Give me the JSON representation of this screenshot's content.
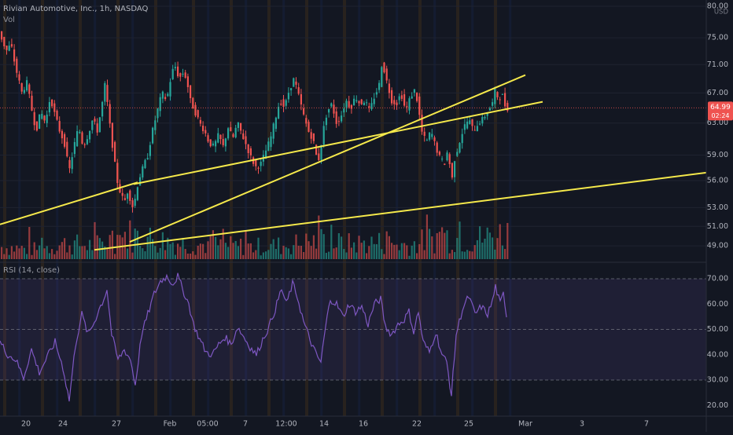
{
  "legend": {
    "title": "Rivian Automotive, Inc., 1h, NASDAQ",
    "volume": "Vol",
    "rsi": "RSI (14, close)"
  },
  "price_axis": {
    "currency": "USD",
    "ticks": [
      "80.00",
      "75.00",
      "71.00",
      "67.00",
      "63.00",
      "59.00",
      "56.00",
      "53.00",
      "51.00",
      "49.00"
    ],
    "last_price": "64.99",
    "countdown": "02:24"
  },
  "rsi_axis": {
    "ticks": [
      "70.00",
      "60.00",
      "50.00",
      "40.00",
      "30.00",
      "20.00"
    ]
  },
  "time_axis": {
    "ticks": [
      "20",
      "24",
      "27",
      "Feb",
      "05:00",
      "7",
      "12:00",
      "14",
      "16",
      "22",
      "25",
      "Mar",
      "3",
      "7"
    ]
  },
  "colors": {
    "background": "#131722",
    "up": "#26a69a",
    "down": "#ef5350",
    "trendline": "#f5e94b",
    "rsi_line": "#7e57c2",
    "session_band": "#ff9800",
    "premarket_band": "#2962ff"
  },
  "chart_data": {
    "type": "candlestick",
    "symbol": "RIVN",
    "interval": "1h",
    "y_scale": "log",
    "price_range": [
      48.0,
      80.0
    ],
    "price_path": [
      [
        0,
        76.5
      ],
      [
        4,
        75.0
      ],
      [
        10,
        73.0
      ],
      [
        16,
        74.0
      ],
      [
        22,
        70.5
      ],
      [
        30,
        67.0
      ],
      [
        36,
        68.5
      ],
      [
        42,
        65.0
      ],
      [
        48,
        62.0
      ],
      [
        54,
        64.5
      ],
      [
        60,
        63.0
      ],
      [
        66,
        66.5
      ],
      [
        72,
        64.0
      ],
      [
        78,
        62.0
      ],
      [
        84,
        60.5
      ],
      [
        90,
        57.0
      ],
      [
        96,
        60.0
      ],
      [
        102,
        62.5
      ],
      [
        108,
        60.0
      ],
      [
        114,
        61.5
      ],
      [
        120,
        63.5
      ],
      [
        126,
        62.0
      ],
      [
        132,
        65.5
      ],
      [
        136,
        68.5
      ],
      [
        140,
        64.0
      ],
      [
        144,
        61.0
      ],
      [
        148,
        58.0
      ],
      [
        152,
        55.5
      ],
      [
        156,
        54.5
      ],
      [
        160,
        53.5
      ],
      [
        165,
        55.0
      ],
      [
        170,
        53.0
      ],
      [
        174,
        54.0
      ],
      [
        178,
        56.0
      ],
      [
        184,
        57.5
      ],
      [
        190,
        59.0
      ],
      [
        196,
        62.0
      ],
      [
        202,
        64.5
      ],
      [
        208,
        67.0
      ],
      [
        214,
        66.0
      ],
      [
        220,
        69.5
      ],
      [
        224,
        71.0
      ],
      [
        230,
        69.0
      ],
      [
        236,
        70.0
      ],
      [
        240,
        68.5
      ],
      [
        244,
        66.0
      ],
      [
        250,
        64.5
      ],
      [
        256,
        63.0
      ],
      [
        262,
        62.0
      ],
      [
        268,
        60.5
      ],
      [
        274,
        60.0
      ],
      [
        280,
        61.5
      ],
      [
        286,
        60.0
      ],
      [
        292,
        62.5
      ],
      [
        298,
        61.0
      ],
      [
        304,
        63.0
      ],
      [
        310,
        61.5
      ],
      [
        316,
        60.0
      ],
      [
        322,
        58.5
      ],
      [
        328,
        57.5
      ],
      [
        334,
        58.0
      ],
      [
        340,
        59.5
      ],
      [
        346,
        61.0
      ],
      [
        352,
        63.5
      ],
      [
        358,
        66.0
      ],
      [
        364,
        65.0
      ],
      [
        370,
        67.5
      ],
      [
        376,
        69.0
      ],
      [
        382,
        66.5
      ],
      [
        388,
        64.0
      ],
      [
        394,
        62.0
      ],
      [
        400,
        61.0
      ],
      [
        404,
        59.0
      ],
      [
        408,
        58.5
      ],
      [
        412,
        61.5
      ],
      [
        418,
        64.5
      ],
      [
        424,
        65.5
      ],
      [
        430,
        63.0
      ],
      [
        436,
        64.0
      ],
      [
        442,
        66.0
      ],
      [
        448,
        65.0
      ],
      [
        454,
        66.5
      ],
      [
        460,
        65.5
      ],
      [
        466,
        66.0
      ],
      [
        472,
        64.5
      ],
      [
        478,
        66.5
      ],
      [
        484,
        68.0
      ],
      [
        488,
        71.5
      ],
      [
        494,
        68.5
      ],
      [
        500,
        66.0
      ],
      [
        506,
        65.5
      ],
      [
        512,
        67.0
      ],
      [
        518,
        64.5
      ],
      [
        524,
        66.5
      ],
      [
        530,
        67.5
      ],
      [
        534,
        65.0
      ],
      [
        538,
        62.0
      ],
      [
        544,
        60.5
      ],
      [
        550,
        62.0
      ],
      [
        556,
        60.0
      ],
      [
        562,
        58.5
      ],
      [
        568,
        58.0
      ],
      [
        572,
        60.0
      ],
      [
        576,
        55.5
      ],
      [
        580,
        58.5
      ],
      [
        586,
        60.5
      ],
      [
        592,
        62.5
      ],
      [
        598,
        63.5
      ],
      [
        604,
        62.0
      ],
      [
        610,
        63.0
      ],
      [
        616,
        63.5
      ],
      [
        622,
        64.5
      ],
      [
        628,
        65.5
      ],
      [
        632,
        67.5
      ],
      [
        636,
        66.0
      ],
      [
        640,
        67.0
      ],
      [
        645,
        65.0
      ]
    ],
    "volume_profile": [
      [
        0,
        0.45
      ],
      [
        40,
        0.35
      ],
      [
        80,
        0.55
      ],
      [
        120,
        0.5
      ],
      [
        160,
        0.9
      ],
      [
        200,
        0.7
      ],
      [
        240,
        0.55
      ],
      [
        280,
        0.5
      ],
      [
        320,
        0.45
      ],
      [
        360,
        0.5
      ],
      [
        400,
        0.65
      ],
      [
        440,
        0.55
      ],
      [
        480,
        0.6
      ],
      [
        520,
        0.5
      ],
      [
        560,
        0.85
      ],
      [
        600,
        0.7
      ],
      [
        645,
        0.95
      ]
    ],
    "rsi_path": [
      [
        0,
        45
      ],
      [
        10,
        40
      ],
      [
        20,
        38
      ],
      [
        30,
        31
      ],
      [
        40,
        42
      ],
      [
        50,
        33
      ],
      [
        60,
        39
      ],
      [
        70,
        45
      ],
      [
        80,
        35
      ],
      [
        88,
        22
      ],
      [
        96,
        44
      ],
      [
        104,
        56
      ],
      [
        112,
        48
      ],
      [
        120,
        53
      ],
      [
        126,
        58
      ],
      [
        132,
        62
      ],
      [
        136,
        66
      ],
      [
        142,
        48
      ],
      [
        150,
        38
      ],
      [
        158,
        42
      ],
      [
        166,
        38
      ],
      [
        172,
        28
      ],
      [
        180,
        48
      ],
      [
        188,
        56
      ],
      [
        196,
        64
      ],
      [
        204,
        69
      ],
      [
        212,
        71
      ],
      [
        220,
        68
      ],
      [
        226,
        71
      ],
      [
        232,
        66
      ],
      [
        240,
        60
      ],
      [
        246,
        52
      ],
      [
        254,
        46
      ],
      [
        262,
        41
      ],
      [
        270,
        40
      ],
      [
        278,
        44
      ],
      [
        286,
        47
      ],
      [
        294,
        44
      ],
      [
        302,
        51
      ],
      [
        310,
        47
      ],
      [
        318,
        43
      ],
      [
        326,
        40
      ],
      [
        334,
        46
      ],
      [
        342,
        51
      ],
      [
        350,
        58
      ],
      [
        358,
        66
      ],
      [
        364,
        60
      ],
      [
        372,
        68
      ],
      [
        378,
        63
      ],
      [
        386,
        53
      ],
      [
        394,
        46
      ],
      [
        402,
        40
      ],
      [
        408,
        37
      ],
      [
        414,
        51
      ],
      [
        420,
        62
      ],
      [
        428,
        60
      ],
      [
        436,
        55
      ],
      [
        444,
        60
      ],
      [
        452,
        57
      ],
      [
        460,
        59
      ],
      [
        468,
        52
      ],
      [
        476,
        60
      ],
      [
        484,
        62
      ],
      [
        490,
        51
      ],
      [
        498,
        48
      ],
      [
        506,
        52
      ],
      [
        514,
        54
      ],
      [
        520,
        57
      ],
      [
        526,
        49
      ],
      [
        532,
        57
      ],
      [
        538,
        45
      ],
      [
        546,
        41
      ],
      [
        554,
        49
      ],
      [
        562,
        40
      ],
      [
        568,
        37
      ],
      [
        574,
        24
      ],
      [
        580,
        48
      ],
      [
        588,
        58
      ],
      [
        596,
        63
      ],
      [
        604,
        56
      ],
      [
        612,
        59
      ],
      [
        620,
        56
      ],
      [
        626,
        61
      ],
      [
        630,
        67
      ],
      [
        636,
        60
      ],
      [
        640,
        64
      ],
      [
        645,
        54
      ]
    ],
    "trendlines": [
      {
        "from": [
          0,
          51.2
        ],
        "to": [
          175,
          55.8
        ]
      },
      {
        "from": [
          170,
          55.6
        ],
        "to": [
          690,
          65.8
        ]
      },
      {
        "from": [
          165,
          49.4
        ],
        "to": [
          668,
          69.5
        ]
      },
      {
        "from": [
          120,
          48.6
        ],
        "to": [
          905,
          57.0
        ]
      }
    ],
    "x_ticks": [
      "20",
      "24",
      "27",
      "Feb",
      "05:00",
      "7",
      "12:00",
      "14",
      "16",
      "22",
      "25",
      "Mar",
      "3",
      "7"
    ],
    "y_ticks": [
      80,
      75,
      71,
      67,
      63,
      59,
      56,
      53,
      51,
      49
    ],
    "rsi_ticks": [
      70,
      60,
      50,
      40,
      30,
      20
    ],
    "rsi_band": [
      30,
      70
    ]
  }
}
